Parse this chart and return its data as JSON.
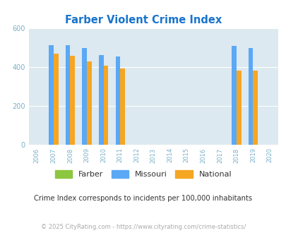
{
  "title": "Farber Violent Crime Index",
  "title_color": "#1874cd",
  "years": [
    2006,
    2007,
    2008,
    2009,
    2010,
    2011,
    2012,
    2013,
    2014,
    2015,
    2016,
    2017,
    2018,
    2019,
    2020
  ],
  "farber": [
    0,
    0,
    0,
    0,
    0,
    0,
    0,
    0,
    0,
    0,
    0,
    0,
    0,
    0,
    0
  ],
  "missouri": [
    0,
    510,
    510,
    495,
    460,
    452,
    0,
    0,
    0,
    0,
    0,
    0,
    507,
    498,
    0
  ],
  "national": [
    0,
    467,
    458,
    429,
    406,
    390,
    0,
    0,
    0,
    0,
    0,
    0,
    381,
    379,
    0
  ],
  "bar_width": 0.28,
  "missouri_color": "#5ba8f5",
  "national_color": "#f5a623",
  "farber_color": "#8dc63f",
  "ylim": [
    0,
    600
  ],
  "yticks": [
    0,
    200,
    400,
    600
  ],
  "background_color": "#dce9f0",
  "grid_color": "#ffffff",
  "tick_color": "#7ab0c8",
  "legend_labels": [
    "Farber",
    "Missouri",
    "National"
  ],
  "footnote1": "Crime Index corresponds to incidents per 100,000 inhabitants",
  "footnote2": "© 2025 CityRating.com - https://www.cityrating.com/crime-statistics/"
}
